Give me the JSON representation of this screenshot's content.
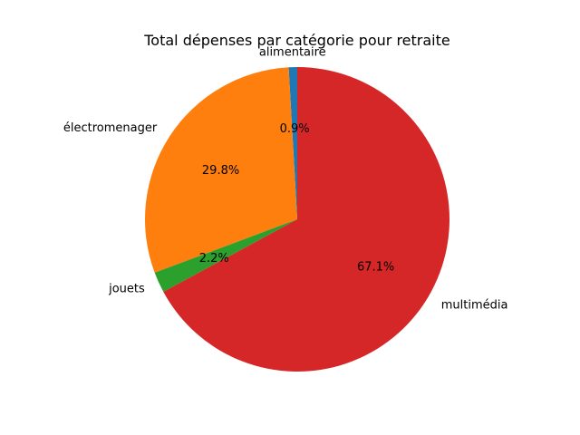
{
  "chart_data": {
    "type": "pie",
    "title": "Total dépenses par catégorie pour retraite",
    "categories": [
      "alimentaire",
      "électromenager",
      "jouets",
      "multimédia"
    ],
    "values": [
      0.9,
      29.8,
      2.2,
      67.1
    ],
    "value_labels": [
      "0.9%",
      "29.8%",
      "2.2%",
      "67.1%"
    ],
    "colors": [
      "#1f77b4",
      "#ff7f0e",
      "#2ca02c",
      "#d62728"
    ],
    "start_angle_deg": 90,
    "direction": "counterclockwise",
    "legend": "none"
  }
}
